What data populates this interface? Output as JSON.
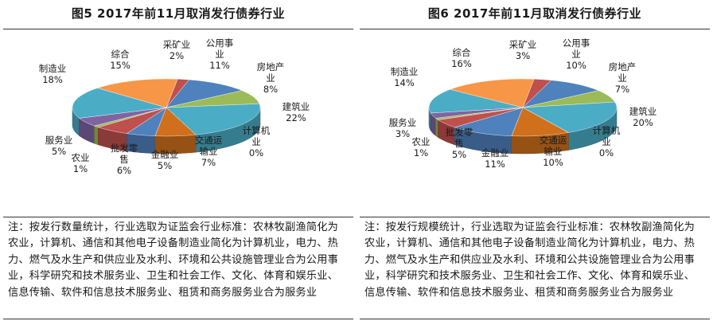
{
  "chart_data": [
    {
      "type": "pie",
      "title": "图5   2017年前11月取消发行债券行业",
      "categories": [
        "采矿业",
        "公用事业",
        "房地产业",
        "建筑业",
        "计算机业",
        "交通运输业",
        "金融业",
        "批发零售",
        "农业",
        "服务业",
        "制造业",
        "综合"
      ],
      "values": [
        2,
        11,
        8,
        22,
        0,
        7,
        5,
        6,
        1,
        5,
        18,
        15
      ],
      "label_lines": [
        [
          "采矿业",
          "2%"
        ],
        [
          "公用事",
          "业",
          "11%"
        ],
        [
          "房地产",
          "业",
          "8%"
        ],
        [
          "建筑业",
          "22%"
        ],
        [
          "计算机",
          "业",
          "0%"
        ],
        [
          "交通运",
          "输业",
          "7%"
        ],
        [
          "金融业",
          "5%"
        ],
        [
          "批发零",
          "售",
          "6%"
        ],
        [
          "农业",
          "1%"
        ],
        [
          "服务业",
          "5%"
        ],
        [
          "制造业",
          "18%"
        ],
        [
          "综合",
          "15%"
        ]
      ],
      "colors": [
        "#c0504d",
        "#4f81bd",
        "#9bbb59",
        "#4bacc6",
        "#8064a2",
        "#d0701c",
        "#4f81bd",
        "#c0504d",
        "#9bbb59",
        "#8064a2",
        "#4bacc6",
        "#f79646"
      ],
      "note": "注：按发行数量统计，行业选取为证监会行业标准：农林牧副渔简化为农业，计算机、通信和其他电子设备制造业简化为计算机业，电力、热力、燃气及水生产和供应业及水利、环境和公共设施管理业合为公用事业，科学研究和技术服务业、卫生和社会工作、文化、体育和娱乐业、信息传输、软件和信息技术服务业、租赁和商务服务业合为服务业"
    },
    {
      "type": "pie",
      "title": "图6   2017年前11月取消发行债券行业",
      "categories": [
        "采矿业",
        "公用事业",
        "房地产业",
        "建筑业",
        "计算机业",
        "交通运输业",
        "金融业",
        "批发零售",
        "农业",
        "服务业",
        "制造业",
        "综合"
      ],
      "values": [
        3,
        10,
        7,
        20,
        0,
        10,
        11,
        5,
        1,
        3,
        14,
        16
      ],
      "label_lines": [
        [
          "采矿业",
          "3%"
        ],
        [
          "公用事",
          "业",
          "10%"
        ],
        [
          "房地产",
          "业",
          "7%"
        ],
        [
          "建筑业",
          "20%"
        ],
        [
          "计算机",
          "业",
          "0%"
        ],
        [
          "交通运",
          "输业",
          "10%"
        ],
        [
          "金融业",
          "11%"
        ],
        [
          "批发零",
          "售",
          "5%"
        ],
        [
          "农业",
          "1%"
        ],
        [
          "服务业",
          "3%"
        ],
        [
          "制造业",
          "14%"
        ],
        [
          "综合",
          "16%"
        ]
      ],
      "colors": [
        "#c0504d",
        "#4f81bd",
        "#9bbb59",
        "#4bacc6",
        "#8064a2",
        "#d0701c",
        "#4f81bd",
        "#c0504d",
        "#9bbb59",
        "#8064a2",
        "#4bacc6",
        "#f79646"
      ],
      "note": "注：按发行规模统计，行业选取为证监会行业标准：农林牧副渔简化为农业，计算机、通信和其他电子设备制造业简化为计算机业，电力、热力、燃气及水生产和供应业及水利、环境和公共设施管理业合为公用事业，科学研究和技术服务业、卫生和社会工作、文化、体育和娱乐业、信息传输、软件和信息技术服务业、租赁和商务服务业合为服务业"
    }
  ]
}
